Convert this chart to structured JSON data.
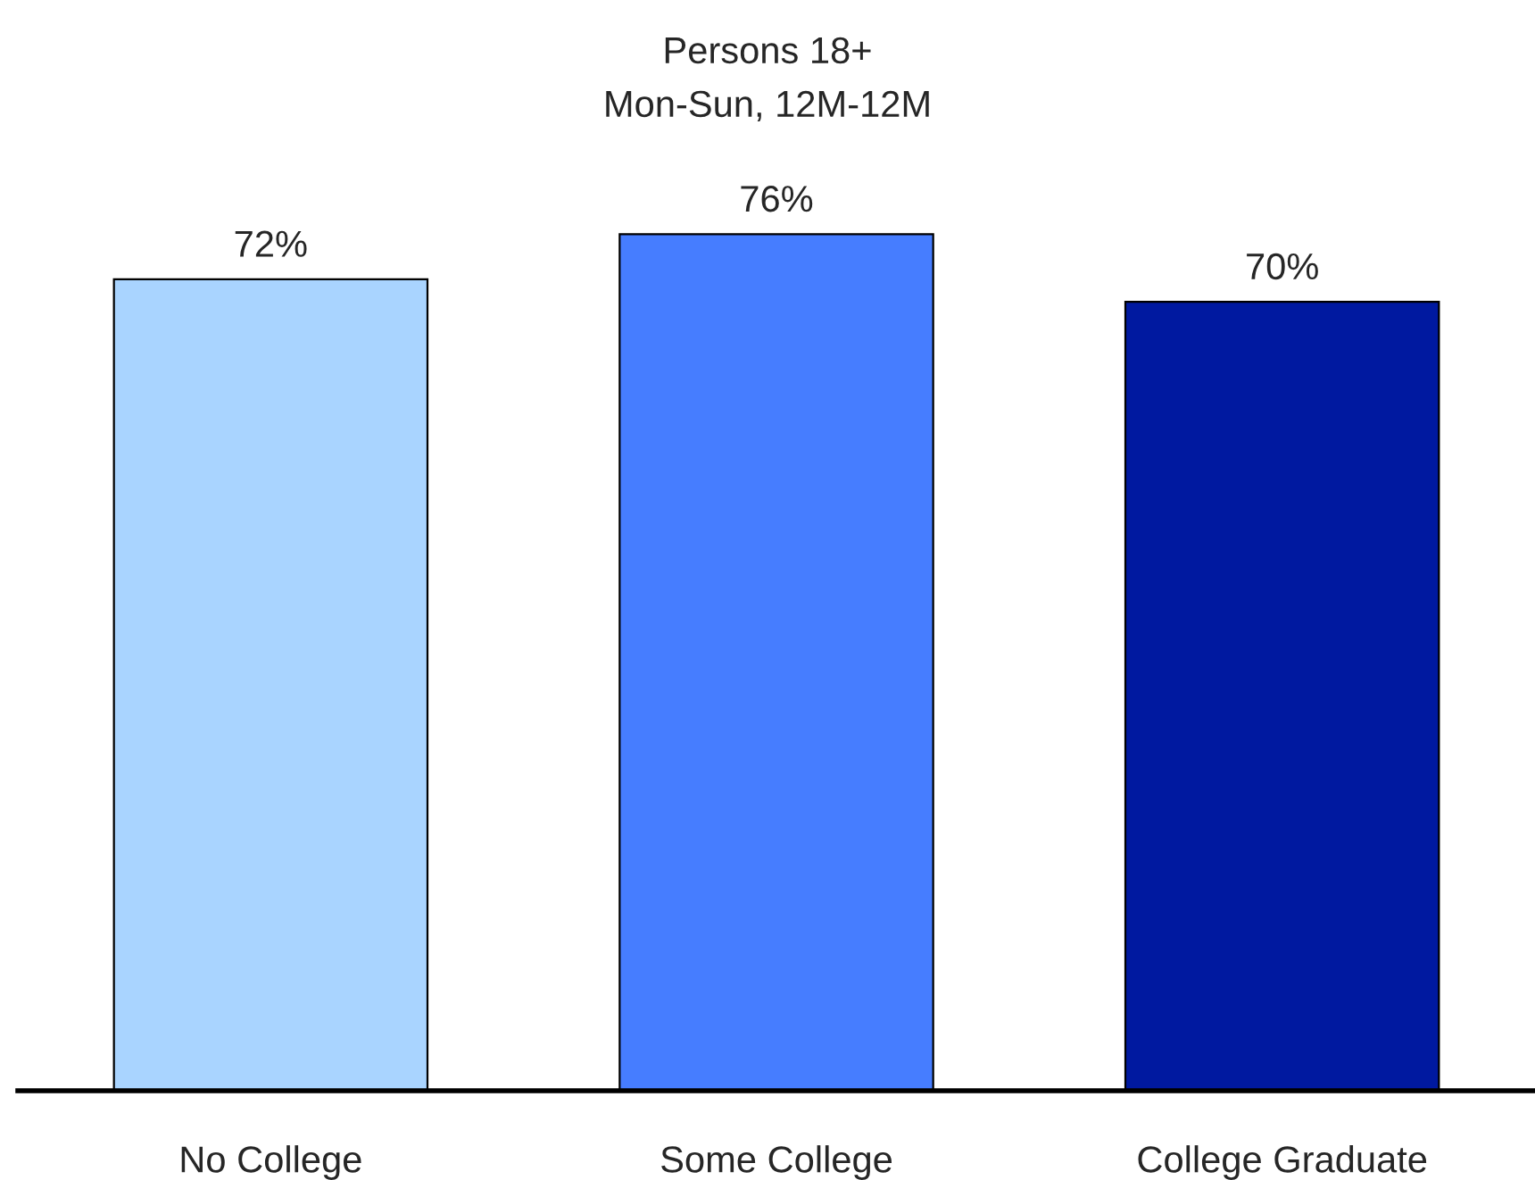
{
  "chart_data": {
    "type": "bar",
    "title": "Persons 18+",
    "subtitle": "Mon-Sun, 12M-12M",
    "categories": [
      "No College",
      "Some College",
      "College Graduate"
    ],
    "values": [
      72,
      76,
      70
    ],
    "colors": [
      "#a9d4ff",
      "#467dff",
      "#0019a0"
    ],
    "data_labels": true,
    "value_labels": [
      "72%",
      "76%",
      "70%"
    ],
    "tick_labels": "x",
    "grid": false,
    "legend": false
  }
}
